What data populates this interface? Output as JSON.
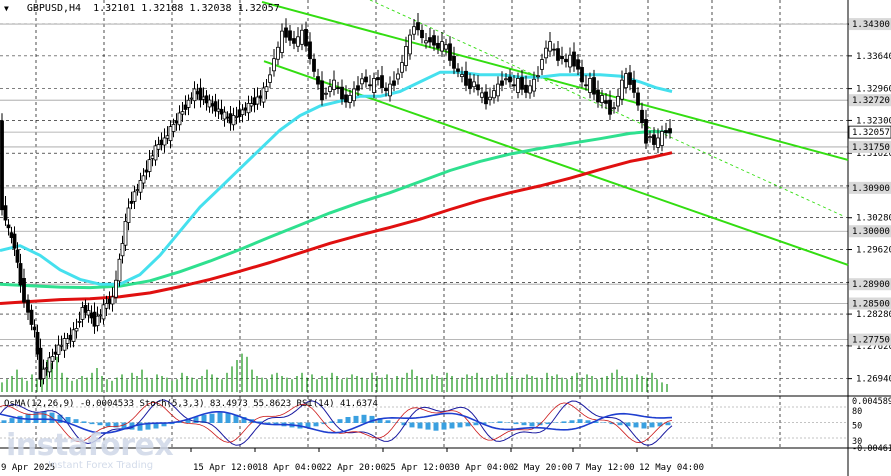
{
  "header": {
    "symbol": "GBPUSD,H4",
    "ohlc": "1.32101 1.32188 1.32038 1.32057"
  },
  "indicator_header": "OsMA(12,26,9) -0.0004533 Stoch(5,3,3) 83.4973 55.8623 RSI(14) 41.6374",
  "watermark": {
    "brand": "instaforex",
    "tagline": "Instant Forex Trading"
  },
  "colors": {
    "ema_fast": "#45e0ee",
    "ema_mid": "#2fe08f",
    "ema_slow": "#e01010",
    "channel": "#33dd11",
    "price": "#000000",
    "volume": "#189618",
    "grid": "#000000",
    "label_bg": "#d9d9d9"
  },
  "chart_data": {
    "type": "candlestick",
    "y_ticks": [
      "1.34300",
      "1.33640",
      "1.32960",
      "1.32300",
      "1.31620",
      "1.30940",
      "1.30280",
      "1.29620",
      "1.28940",
      "1.28280",
      "1.27620",
      "1.26940"
    ],
    "level_labels": [
      "1.34300",
      "1.32720",
      "1.32057",
      "1.31750",
      "1.30900",
      "1.30000",
      "1.28900",
      "1.28500",
      "1.27750"
    ],
    "x_labels": [
      "9 Apr 2025",
      "15 Apr 12:00",
      "18 Apr 04:00",
      "22 Apr 20:00",
      "25 Apr 12:00",
      "30 Apr 04:00",
      "2 May 20:00",
      "7 May 12:00",
      "12 May 04:00"
    ],
    "ylim": [
      1.266,
      1.348
    ],
    "current_price": 1.32057,
    "indicator_scale": [
      "0.004589",
      "80",
      "50",
      "30",
      "-0.004613"
    ],
    "price_path": [
      [
        0,
        1.322
      ],
      [
        4,
        1.305
      ],
      [
        10,
        1.3
      ],
      [
        16,
        1.297
      ],
      [
        22,
        1.289
      ],
      [
        30,
        1.283
      ],
      [
        36,
        1.279
      ],
      [
        42,
        1.27
      ],
      [
        48,
        1.272
      ],
      [
        54,
        1.274
      ],
      [
        60,
        1.276
      ],
      [
        66,
        1.277
      ],
      [
        72,
        1.278
      ],
      [
        78,
        1.28
      ],
      [
        84,
        1.284
      ],
      [
        90,
        1.283
      ],
      [
        96,
        1.281
      ],
      [
        102,
        1.283
      ],
      [
        108,
        1.285
      ],
      [
        114,
        1.286
      ],
      [
        118,
        1.29
      ],
      [
        124,
        1.298
      ],
      [
        130,
        1.305
      ],
      [
        136,
        1.308
      ],
      [
        142,
        1.31
      ],
      [
        148,
        1.313
      ],
      [
        154,
        1.316
      ],
      [
        160,
        1.318
      ],
      [
        166,
        1.319
      ],
      [
        172,
        1.321
      ],
      [
        178,
        1.323
      ],
      [
        184,
        1.325
      ],
      [
        190,
        1.327
      ],
      [
        196,
        1.329
      ],
      [
        202,
        1.328
      ],
      [
        208,
        1.327
      ],
      [
        214,
        1.326
      ],
      [
        220,
        1.325
      ],
      [
        226,
        1.324
      ],
      [
        232,
        1.323
      ],
      [
        238,
        1.324
      ],
      [
        244,
        1.325
      ],
      [
        250,
        1.326
      ],
      [
        256,
        1.327
      ],
      [
        262,
        1.328
      ],
      [
        268,
        1.33
      ],
      [
        272,
        1.333
      ],
      [
        276,
        1.336
      ],
      [
        280,
        1.338
      ],
      [
        284,
        1.341
      ],
      [
        288,
        1.341
      ],
      [
        292,
        1.34
      ],
      [
        296,
        1.339
      ],
      [
        300,
        1.34
      ],
      [
        304,
        1.341
      ],
      [
        308,
        1.339
      ],
      [
        312,
        1.336
      ],
      [
        316,
        1.333
      ],
      [
        320,
        1.33
      ],
      [
        324,
        1.328
      ],
      [
        328,
        1.329
      ],
      [
        332,
        1.33
      ],
      [
        336,
        1.331
      ],
      [
        340,
        1.329
      ],
      [
        344,
        1.328
      ],
      [
        348,
        1.327
      ],
      [
        352,
        1.328
      ],
      [
        356,
        1.329
      ],
      [
        360,
        1.33
      ],
      [
        364,
        1.332
      ],
      [
        368,
        1.331
      ],
      [
        372,
        1.33
      ],
      [
        376,
        1.331
      ],
      [
        380,
        1.332
      ],
      [
        384,
        1.33
      ],
      [
        388,
        1.329
      ],
      [
        392,
        1.33
      ],
      [
        396,
        1.331
      ],
      [
        400,
        1.333
      ],
      [
        404,
        1.335
      ],
      [
        408,
        1.338
      ],
      [
        412,
        1.34
      ],
      [
        416,
        1.343
      ],
      [
        420,
        1.342
      ],
      [
        424,
        1.34
      ],
      [
        428,
        1.339
      ],
      [
        432,
        1.34
      ],
      [
        436,
        1.339
      ],
      [
        440,
        1.338
      ],
      [
        444,
        1.339
      ],
      [
        448,
        1.338
      ],
      [
        452,
        1.336
      ],
      [
        456,
        1.334
      ],
      [
        460,
        1.333
      ],
      [
        464,
        1.332
      ],
      [
        468,
        1.331
      ],
      [
        472,
        1.33
      ],
      [
        476,
        1.331
      ],
      [
        480,
        1.329
      ],
      [
        484,
        1.328
      ],
      [
        488,
        1.327
      ],
      [
        492,
        1.328
      ],
      [
        496,
        1.329
      ],
      [
        500,
        1.33
      ],
      [
        504,
        1.331
      ],
      [
        508,
        1.332
      ],
      [
        512,
        1.331
      ],
      [
        516,
        1.33
      ],
      [
        520,
        1.331
      ],
      [
        524,
        1.33
      ],
      [
        528,
        1.329
      ],
      [
        532,
        1.33
      ],
      [
        536,
        1.331
      ],
      [
        540,
        1.333
      ],
      [
        544,
        1.336
      ],
      [
        548,
        1.338
      ],
      [
        552,
        1.339
      ],
      [
        556,
        1.337
      ],
      [
        560,
        1.336
      ],
      [
        564,
        1.336
      ],
      [
        568,
        1.335
      ],
      [
        572,
        1.336
      ],
      [
        576,
        1.335
      ],
      [
        580,
        1.334
      ],
      [
        584,
        1.331
      ],
      [
        588,
        1.33
      ],
      [
        592,
        1.331
      ],
      [
        596,
        1.329
      ],
      [
        600,
        1.327
      ],
      [
        604,
        1.328
      ],
      [
        608,
        1.326
      ],
      [
        612,
        1.325
      ],
      [
        616,
        1.326
      ],
      [
        620,
        1.328
      ],
      [
        624,
        1.331
      ],
      [
        628,
        1.332
      ],
      [
        632,
        1.331
      ],
      [
        636,
        1.329
      ],
      [
        640,
        1.326
      ],
      [
        644,
        1.322
      ],
      [
        648,
        1.319
      ],
      [
        652,
        1.32
      ],
      [
        656,
        1.318
      ],
      [
        660,
        1.319
      ],
      [
        664,
        1.32
      ],
      [
        668,
        1.321
      ],
      [
        672,
        1.3206
      ]
    ],
    "ema_fast_path": [
      [
        0,
        1.296
      ],
      [
        20,
        1.297
      ],
      [
        40,
        1.295
      ],
      [
        60,
        1.292
      ],
      [
        80,
        1.29
      ],
      [
        100,
        1.289
      ],
      [
        120,
        1.289
      ],
      [
        140,
        1.291
      ],
      [
        160,
        1.295
      ],
      [
        180,
        1.3
      ],
      [
        200,
        1.305
      ],
      [
        220,
        1.309
      ],
      [
        240,
        1.313
      ],
      [
        260,
        1.317
      ],
      [
        280,
        1.321
      ],
      [
        300,
        1.324
      ],
      [
        320,
        1.326
      ],
      [
        340,
        1.327
      ],
      [
        360,
        1.328
      ],
      [
        380,
        1.328
      ],
      [
        400,
        1.329
      ],
      [
        420,
        1.331
      ],
      [
        440,
        1.333
      ],
      [
        460,
        1.333
      ],
      [
        480,
        1.3325
      ],
      [
        500,
        1.3325
      ],
      [
        520,
        1.332
      ],
      [
        540,
        1.332
      ],
      [
        560,
        1.3325
      ],
      [
        580,
        1.3325
      ],
      [
        600,
        1.3325
      ],
      [
        620,
        1.3322
      ],
      [
        640,
        1.331
      ],
      [
        656,
        1.3298
      ],
      [
        672,
        1.329
      ]
    ],
    "ema_mid_path": [
      [
        0,
        1.289
      ],
      [
        30,
        1.2887
      ],
      [
        60,
        1.2884
      ],
      [
        90,
        1.2883
      ],
      [
        120,
        1.2886
      ],
      [
        150,
        1.2897
      ],
      [
        180,
        1.2916
      ],
      [
        210,
        1.2938
      ],
      [
        240,
        1.2962
      ],
      [
        270,
        1.2988
      ],
      [
        300,
        1.3013
      ],
      [
        330,
        1.3038
      ],
      [
        360,
        1.306
      ],
      [
        390,
        1.308
      ],
      [
        420,
        1.3103
      ],
      [
        450,
        1.3126
      ],
      [
        480,
        1.3145
      ],
      [
        510,
        1.316
      ],
      [
        540,
        1.3172
      ],
      [
        570,
        1.3182
      ],
      [
        600,
        1.3192
      ],
      [
        630,
        1.3203
      ],
      [
        650,
        1.3207
      ],
      [
        672,
        1.3206
      ]
    ],
    "ema_slow_path": [
      [
        0,
        1.285
      ],
      [
        30,
        1.2854
      ],
      [
        60,
        1.2858
      ],
      [
        90,
        1.286
      ],
      [
        120,
        1.2864
      ],
      [
        150,
        1.2872
      ],
      [
        180,
        1.2885
      ],
      [
        210,
        1.29
      ],
      [
        240,
        1.2917
      ],
      [
        270,
        1.2935
      ],
      [
        300,
        1.2955
      ],
      [
        330,
        1.2975
      ],
      [
        360,
        1.2992
      ],
      [
        390,
        1.3008
      ],
      [
        420,
        1.3025
      ],
      [
        450,
        1.3045
      ],
      [
        480,
        1.3064
      ],
      [
        510,
        1.308
      ],
      [
        540,
        1.3094
      ],
      [
        570,
        1.311
      ],
      [
        600,
        1.3128
      ],
      [
        630,
        1.3145
      ],
      [
        655,
        1.3155
      ],
      [
        672,
        1.3163
      ]
    ],
    "channel_upper": [
      [
        262,
        1.3476
      ],
      [
        848,
        1.3148
      ]
    ],
    "channel_lower": [
      [
        264,
        1.3353
      ],
      [
        848,
        1.293
      ]
    ],
    "channel_mid_dotted": [
      [
        370,
        1.348
      ],
      [
        845,
        1.303
      ]
    ],
    "volume": [
      6,
      8,
      10,
      14,
      9,
      7,
      11,
      8,
      16,
      20,
      18,
      22,
      12,
      9,
      7,
      8,
      10,
      9,
      12,
      15,
      10,
      8,
      7,
      9,
      11,
      8,
      12,
      10,
      14,
      9,
      8,
      11,
      10,
      9,
      7,
      8,
      12,
      10,
      9,
      8,
      10,
      14,
      11,
      9,
      8,
      12,
      16,
      20,
      24,
      22,
      14,
      10,
      9,
      8,
      11,
      12,
      10,
      9,
      8,
      10,
      12,
      9,
      11,
      8,
      10,
      9,
      12,
      10,
      8,
      9,
      11,
      10,
      9,
      8,
      12,
      10,
      9,
      11,
      8,
      10,
      9,
      12,
      14,
      10,
      9,
      8,
      11,
      10,
      9,
      12,
      10,
      8,
      9,
      11,
      10,
      12,
      9,
      8,
      10,
      11,
      9,
      12,
      10,
      8,
      9,
      11,
      10,
      9,
      8,
      12,
      10,
      11,
      9,
      8,
      10,
      12,
      9,
      11,
      10,
      8,
      9,
      10,
      12,
      14,
      10,
      9,
      8,
      11,
      10,
      9,
      12,
      8,
      6,
      5
    ],
    "osma": [
      0.2,
      0.4,
      0.6,
      0.8,
      0.9,
      1.0,
      0.9,
      0.7,
      0.5,
      0.3,
      0.1,
      -0.1,
      -0.2,
      -0.3,
      -0.4,
      -0.5,
      -0.6,
      -0.7,
      -0.6,
      -0.5,
      -0.3,
      -0.1,
      0.1,
      0.3,
      0.5,
      0.7,
      0.8,
      0.9,
      0.85,
      0.7,
      0.5,
      0.3,
      0.1,
      -0.1,
      -0.2,
      -0.3,
      -0.4,
      -0.5,
      -0.4,
      -0.3,
      -0.1,
      0.1,
      0.3,
      0.5,
      0.6,
      0.7,
      0.6,
      0.4,
      0.2,
      0.0,
      -0.2,
      -0.4,
      -0.5,
      -0.6,
      -0.7,
      -0.6,
      -0.5,
      -0.4,
      -0.3,
      -0.2,
      -0.1,
      0.0,
      0.1,
      0.0,
      -0.1,
      -0.2,
      -0.3,
      -0.2,
      -0.1,
      0.0,
      0.1,
      0.2,
      0.3,
      0.2,
      0.1,
      0.0,
      -0.1,
      -0.2,
      -0.3,
      -0.4,
      -0.5,
      -0.4,
      -0.3,
      -0.2,
      -0.1
    ]
  }
}
